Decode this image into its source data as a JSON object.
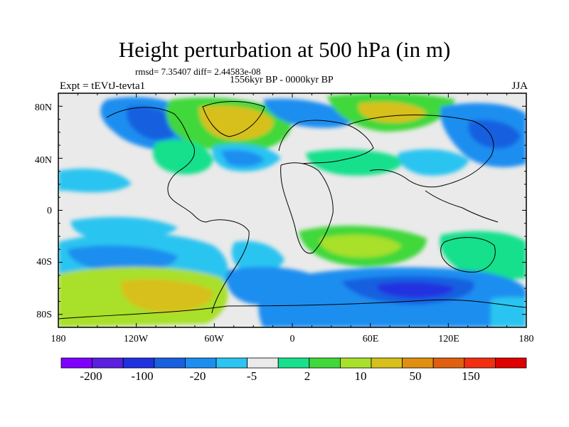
{
  "title": "Height perturbation at 500 hPa (in m)",
  "stats": "rmsd= 7.35407 diff= 2.44583e-08",
  "period": "1556kyr BP - 0000kyr BP",
  "experiment": "Expt = tEVtJ-tevta1",
  "season": "JJA",
  "axes": {
    "lat_ticks": [
      "80N",
      "40N",
      "0",
      "40S",
      "80S"
    ],
    "lon_ticks": [
      "180",
      "120W",
      "60W",
      "0",
      "60E",
      "120E",
      "180"
    ]
  },
  "colorbar": {
    "colors": [
      "#7f00ff",
      "#5a1fe0",
      "#2030e0",
      "#1860e0",
      "#1c8ef0",
      "#2cc4f0",
      "#eaeaea",
      "#18e08c",
      "#40d83a",
      "#a8e02c",
      "#d8c01c",
      "#e09010",
      "#e06010",
      "#f03010",
      "#e00000"
    ],
    "labels": [
      "-200",
      "-100",
      "-20",
      "-5",
      "2",
      "10",
      "50",
      "150"
    ]
  },
  "palette": {
    "neutral": "#eaeaea",
    "blue_dark": "#2030e0",
    "blue": "#1860e0",
    "blue_mid": "#1c8ef0",
    "cyan": "#2cc4f0",
    "teal": "#18e08c",
    "green": "#40d83a",
    "yellow_green": "#a8e02c",
    "gold": "#d8c01c",
    "orange": "#e09010"
  }
}
